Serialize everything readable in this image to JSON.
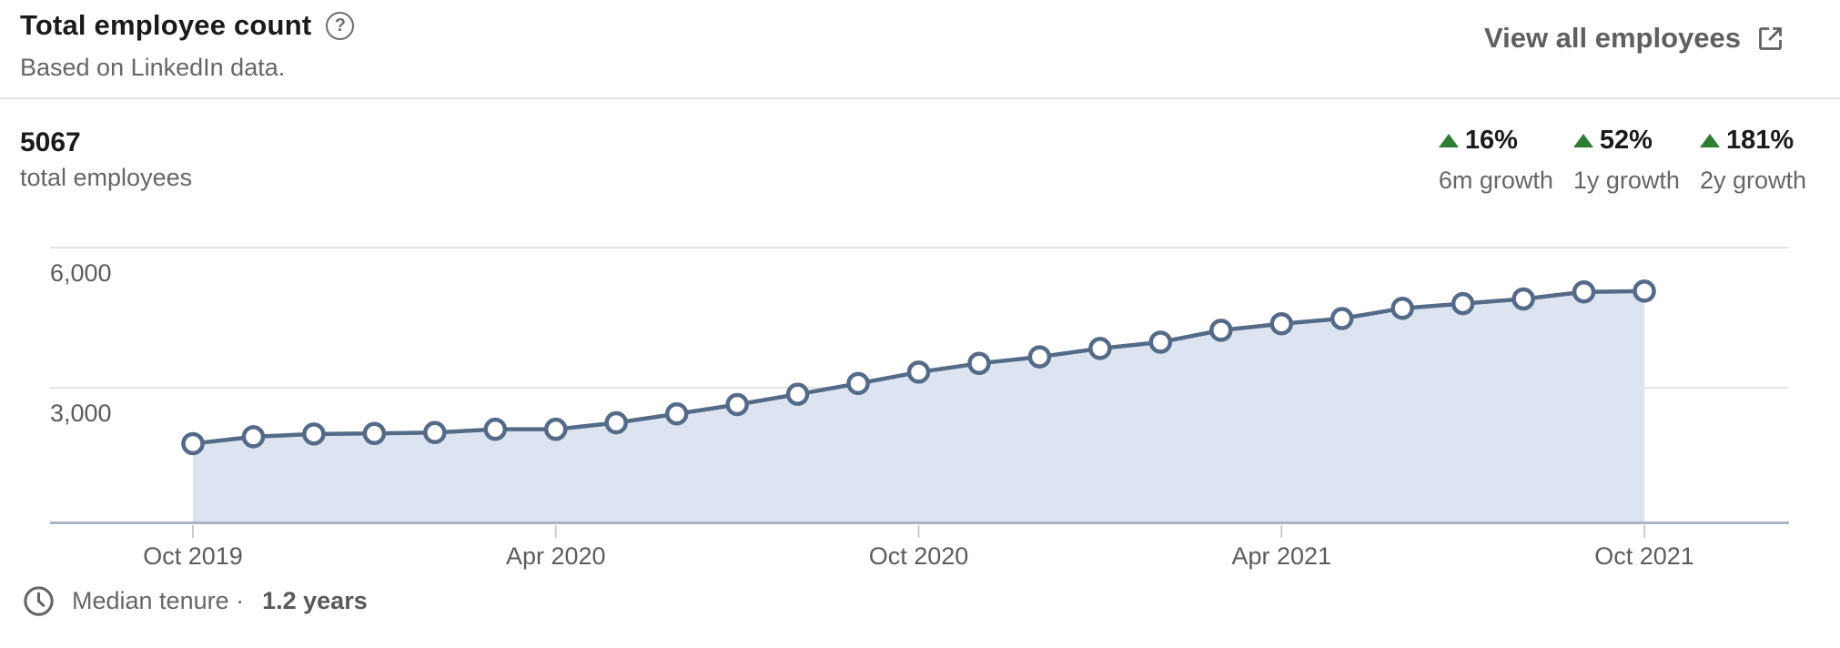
{
  "header": {
    "title": "Total employee count",
    "help_icon": "circled-question-mark",
    "help_glyph": "?",
    "subtitle": "Based on LinkedIn data.",
    "view_all_label": "View all employees",
    "external_link_icon": "open-in-new-window"
  },
  "summary": {
    "value": "5067",
    "label": "total employees"
  },
  "growth_stats": [
    {
      "direction": "up",
      "percent": "16%",
      "label": "6m growth"
    },
    {
      "direction": "up",
      "percent": "52%",
      "label": "1y growth"
    },
    {
      "direction": "up",
      "percent": "181%",
      "label": "2y growth"
    }
  ],
  "footer": {
    "clock_icon": "clock",
    "label": "Median tenure ·",
    "value": "1.2 years"
  },
  "colors": {
    "line": "#546a87",
    "marker_fill": "#ffffff",
    "area_fill": "#dbe4f0",
    "gridline": "#e5e5e5",
    "axis": "#a9b5c6",
    "tick": "#cccccc",
    "growth_green": "#2e7d32",
    "text_dark": "#1a1a1a",
    "text_gray": "#666666"
  },
  "chart_data": {
    "type": "area",
    "title": "Total employee count",
    "xlabel": "",
    "ylabel": "employees",
    "x": [
      "Oct 2019",
      "Nov 2019",
      "Dec 2019",
      "Jan 2020",
      "Feb 2020",
      "Mar 2020",
      "Apr 2020",
      "May 2020",
      "Jun 2020",
      "Jul 2020",
      "Aug 2020",
      "Sep 2020",
      "Oct 2020",
      "Nov 2020",
      "Dec 2020",
      "Jan 2021",
      "Feb 2021",
      "Mar 2021",
      "Apr 2021",
      "May 2021",
      "Jun 2021",
      "Jul 2021",
      "Aug 2021",
      "Sep 2021",
      "Oct 2021"
    ],
    "values": [
      1803,
      1950,
      2010,
      2020,
      2040,
      2110,
      2110,
      2250,
      2440,
      2640,
      2860,
      3090,
      3333,
      3520,
      3660,
      3840,
      3975,
      4230,
      4368,
      4480,
      4700,
      4800,
      4900,
      5050,
      5067
    ],
    "x_tick_labels": [
      "Oct 2019",
      "Apr 2020",
      "Oct 2020",
      "Apr 2021",
      "Oct 2021"
    ],
    "x_tick_indices": [
      0,
      6,
      12,
      18,
      24
    ],
    "y_tick_labels": [
      "6,000",
      "3,000"
    ],
    "y_tick_values": [
      6000,
      3000
    ],
    "ylim": [
      0,
      6000
    ],
    "grid": "horizontal",
    "marker": "open-circle",
    "legend": "none"
  }
}
